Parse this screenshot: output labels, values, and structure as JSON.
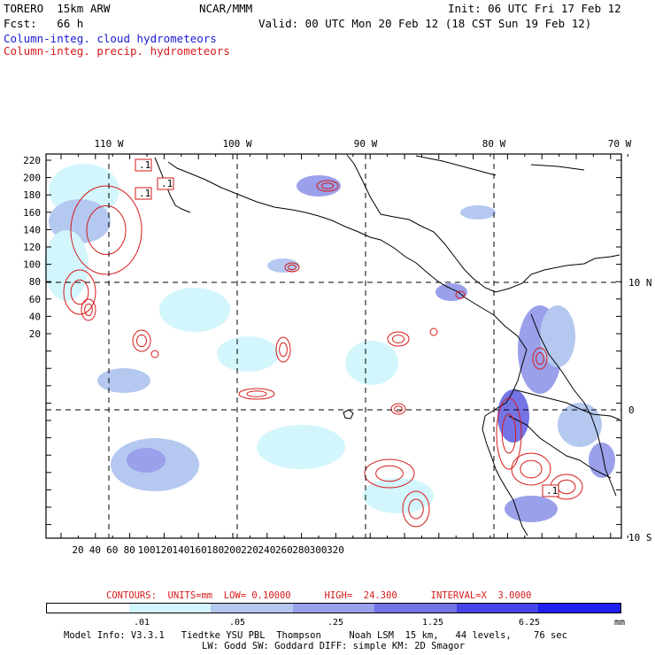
{
  "header": {
    "model": "TORERO  15km ARW",
    "org": "NCAR/MMM",
    "init": "Init: 06 UTC Fri 17 Feb 12",
    "fcst": "Fcst:   66 h",
    "valid": "Valid: 00 UTC Mon 20 Feb 12 (18 CST Sun 19 Feb 12)",
    "field1": "Column-integ. cloud hydrometeors",
    "field2": "Column-integ. precip. hydrometeors"
  },
  "axes": {
    "lon_labels": [
      "110 W",
      "100 W",
      "90 W",
      "80 W",
      "70 W"
    ],
    "lat_labels": [
      "10 N",
      "0",
      "10 S"
    ],
    "y_ticks": [
      "220",
      "200",
      "180",
      "160",
      "140",
      "120",
      "100",
      "80",
      "60",
      "40",
      "20"
    ],
    "x_ticks": [
      "20",
      "40",
      "60",
      "80",
      "100",
      "120",
      "140",
      "160",
      "180",
      "200",
      "220",
      "240",
      "260",
      "280",
      "300",
      "320"
    ]
  },
  "contour_labels": [
    ".1",
    ".1",
    ".1",
    ".1"
  ],
  "contours_info": "CONTOURS:  UNITS=mm  LOW= 0.10000      HIGH=  24.300      INTERVAL=X  3.0000",
  "legend": {
    "ticks": [
      ".01",
      ".05",
      ".25",
      "1.25",
      "6.25",
      "mm"
    ],
    "colors": [
      "#ffffff",
      "#d2f6fb",
      "#b4c8f0",
      "#9aa0ea",
      "#7474e6",
      "#4545ea",
      "#2020f0"
    ]
  },
  "model_info": {
    "line1": "Model Info: V3.3.1   Tiedtke YSU PBL  Thompson     Noah LSM  15 km,   44 levels,    76 sec",
    "line2": "LW: Godd SW: Goddard DIFF: simple KM: 2D Smagor"
  }
}
